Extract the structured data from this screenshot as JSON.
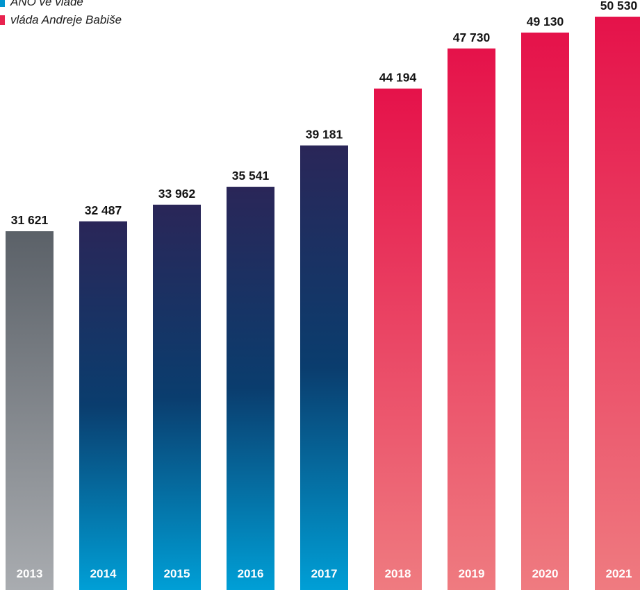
{
  "legend": {
    "items": [
      {
        "label": "ANO ve vládě",
        "color": "#0095cf"
      },
      {
        "label": "vláda Andreje Babiše",
        "color": "#e8234f"
      }
    ]
  },
  "chart_data": {
    "type": "bar",
    "title": "",
    "xlabel": "",
    "ylabel": "",
    "ylim": [
      0,
      52000
    ],
    "grid": false,
    "legend_position": "top-left",
    "categories": [
      "2013",
      "2014",
      "2015",
      "2016",
      "2017",
      "2018",
      "2019",
      "2020",
      "2021"
    ],
    "values": [
      31621,
      32487,
      33962,
      35541,
      39181,
      44194,
      47730,
      49130,
      50530
    ],
    "value_labels": [
      "31 621",
      "32 487",
      "33 962",
      "35 541",
      "39 181",
      "44 194",
      "47 730",
      "49 130",
      "50 530"
    ],
    "groups": [
      "before",
      "ano",
      "ano",
      "ano",
      "ano",
      "babis",
      "babis",
      "babis",
      "babis"
    ],
    "palette": {
      "before": [
        "#5b6168",
        "#a9acb0"
      ],
      "ano": [
        "#2a2658",
        "#0a3d6e",
        "#009fd6"
      ],
      "babis": [
        "#e5124a",
        "#ef7b80"
      ]
    }
  }
}
